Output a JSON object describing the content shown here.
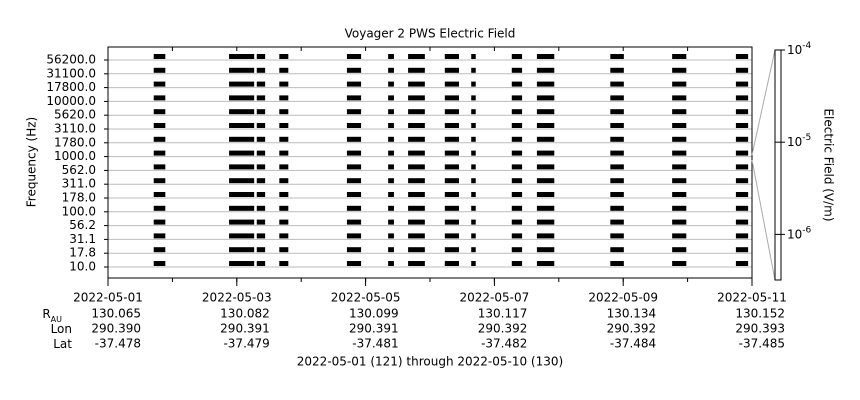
{
  "chart_data": {
    "type": "spectrogram",
    "title": "Voyager 2 PWS Electric Field",
    "y_label": "Frequency (Hz)",
    "categories": [
      "10.0",
      "17.8",
      "31.1",
      "56.2",
      "100.0",
      "178.0",
      "311.0",
      "562.0",
      "1000.0",
      "1780.0",
      "3110.0",
      "5620.0",
      "10000.0",
      "17800.0",
      "31100.0",
      "56200.0"
    ],
    "xlim": [
      0,
      10
    ],
    "xticks": [
      {
        "value": 0,
        "label": "2022-05-01"
      },
      {
        "value": 2,
        "label": "2022-05-03"
      },
      {
        "value": 4,
        "label": "2022-05-05"
      },
      {
        "value": 6,
        "label": "2022-05-07"
      },
      {
        "value": 8,
        "label": "2022-05-09"
      },
      {
        "value": 10,
        "label": "2022-05-11"
      }
    ],
    "segments": [
      [
        0.71,
        0.89
      ],
      [
        1.88,
        2.27
      ],
      [
        2.31,
        2.44
      ],
      [
        2.66,
        2.8
      ],
      [
        3.71,
        3.93
      ],
      [
        4.35,
        4.44
      ],
      [
        4.66,
        4.92
      ],
      [
        5.23,
        5.45
      ],
      [
        5.64,
        5.71
      ],
      [
        6.27,
        6.43
      ],
      [
        6.66,
        6.93
      ],
      [
        7.8,
        8.01
      ],
      [
        8.76,
        8.98
      ],
      [
        9.75,
        9.94
      ]
    ],
    "color": "#000000",
    "colorbar": {
      "label": "Electric Field (V/m)",
      "log": true,
      "zlim": [
        3.2e-07,
        0.0001
      ],
      "zticks": [
        {
          "value": 0.0001,
          "label": "10",
          "exponent": "-4"
        },
        {
          "value": 1e-05,
          "label": "10",
          "exponent": "-5"
        },
        {
          "value": 1e-06,
          "label": "10",
          "exponent": "-6"
        }
      ]
    },
    "ephemeris": [
      {
        "label": "R",
        "sub": "AU",
        "values": [
          "130.065",
          "130.082",
          "130.099",
          "130.117",
          "130.134",
          "130.152"
        ]
      },
      {
        "label": "Lon",
        "values": [
          "290.390",
          "290.391",
          "290.391",
          "290.392",
          "290.392",
          "290.393"
        ]
      },
      {
        "label": "Lat",
        "values": [
          "-37.478",
          "-37.479",
          "-37.481",
          "-37.482",
          "-37.484",
          "-37.485"
        ]
      }
    ],
    "footer": "2022-05-01 (121) through 2022-05-10 (130)"
  }
}
